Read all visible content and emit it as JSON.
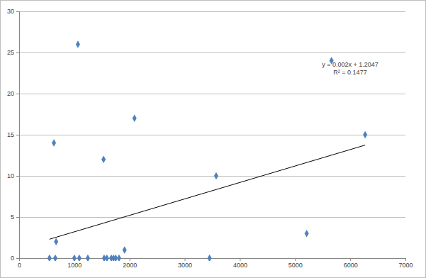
{
  "chart_data": {
    "type": "scatter",
    "xlim": [
      0,
      7000
    ],
    "xticks": [
      0,
      1000,
      2000,
      3000,
      4000,
      5000,
      6000,
      7000
    ],
    "ylim": [
      0,
      30
    ],
    "yticks": [
      0,
      5,
      10,
      15,
      20,
      25,
      30
    ],
    "grid": true,
    "series": [
      {
        "type": "scatter",
        "color": "#4f81bd",
        "marker": "diamond",
        "x": [
          550,
          655,
          630,
          670,
          1000,
          1090,
          1065,
          1245,
          1530,
          1540,
          1590,
          1670,
          1710,
          1750,
          1810,
          1910,
          2090,
          3450,
          3570,
          5210,
          5660,
          6270
        ],
        "values": [
          0,
          0,
          14,
          2,
          0,
          0,
          26,
          0,
          12,
          0,
          0,
          0,
          0,
          0,
          0,
          1,
          17,
          0,
          10,
          3,
          24,
          15
        ]
      },
      {
        "type": "line",
        "color": "#000000",
        "line_style": "solid",
        "x": [
          550,
          6270
        ],
        "values": [
          2.3,
          13.74
        ]
      }
    ],
    "annotations": [
      {
        "text": "y = 0.002x + 1.2047"
      },
      {
        "text": "R² = 0.1477"
      }
    ]
  }
}
